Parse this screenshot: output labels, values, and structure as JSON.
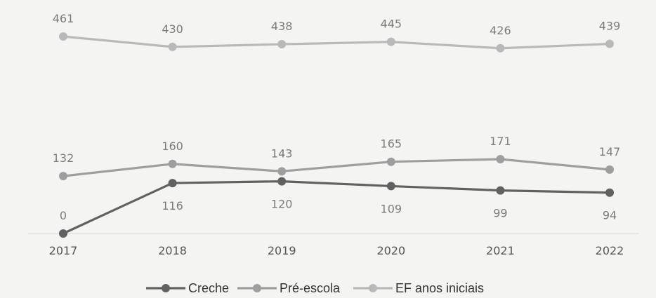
{
  "chart_data": {
    "type": "line",
    "categories": [
      "2017",
      "2018",
      "2019",
      "2020",
      "2021",
      "2022"
    ],
    "series": [
      {
        "name": "Creche",
        "color": "#616161",
        "values": [
          0,
          116,
          120,
          109,
          99,
          94
        ]
      },
      {
        "name": "Pré-escola",
        "color": "#9e9e9e",
        "values": [
          132,
          160,
          143,
          165,
          171,
          147
        ]
      },
      {
        "name": "EF anos iniciais",
        "color": "#b9b9b9",
        "values": [
          461,
          430,
          438,
          445,
          426,
          439
        ]
      }
    ],
    "data_labels": true,
    "grid": false,
    "legend": "bottom"
  }
}
